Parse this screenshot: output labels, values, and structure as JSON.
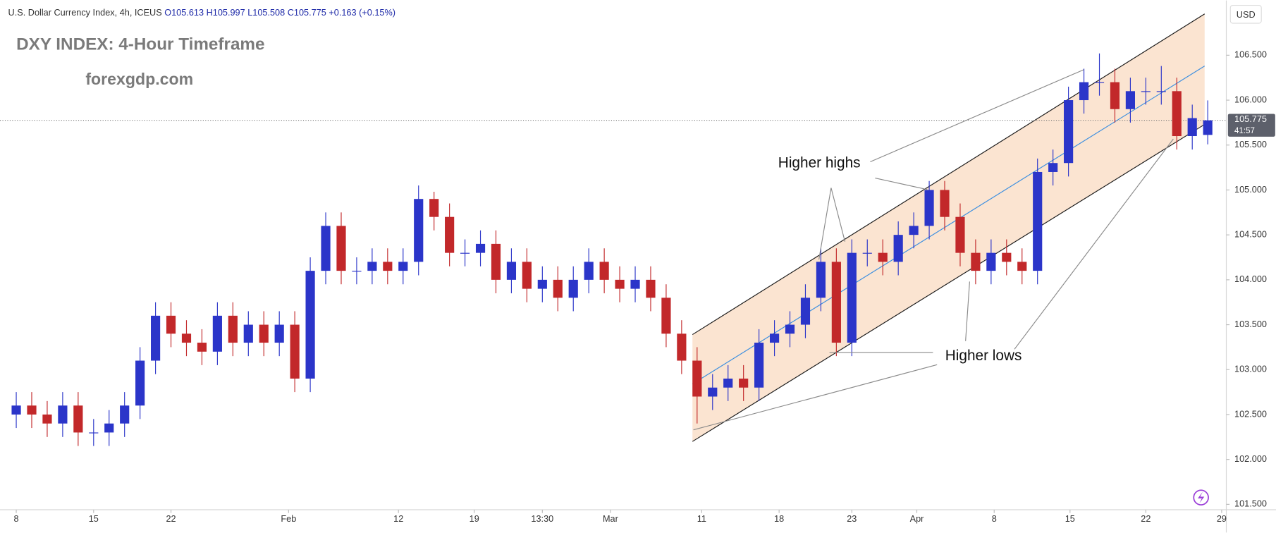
{
  "chart_data": {
    "type": "candlestick",
    "title": "DXY INDEX: 4-Hour Timeframe",
    "subtitle": "forexgdp.com",
    "header": {
      "symbol": "U.S. Dollar Currency Index, 4h, ICEUS",
      "ohlc": [
        "O105.613",
        "H105.997",
        "L105.508",
        "C105.775",
        "+0.163 (+0.15%)"
      ]
    },
    "currency": "USD",
    "annotations": [
      "Higher highs",
      "Higher lows"
    ],
    "last_price": 105.775,
    "countdown": "41:57",
    "up_color": "#2b35c9",
    "down_color": "#c2282a",
    "grid": false,
    "xlim": [
      -1.05,
      78.2
    ],
    "ylim": [
      101.44,
      107.11
    ],
    "xticks": [
      {
        "value": 0,
        "label": "8"
      },
      {
        "value": 5,
        "label": "15"
      },
      {
        "value": 10,
        "label": "22"
      },
      {
        "value": 17.6,
        "label": "Feb"
      },
      {
        "value": 24.7,
        "label": "12"
      },
      {
        "value": 29.6,
        "label": "19"
      },
      {
        "value": 34,
        "label": "13:30"
      },
      {
        "value": 38.4,
        "label": "Mar"
      },
      {
        "value": 44.3,
        "label": "11"
      },
      {
        "value": 49.3,
        "label": "18"
      },
      {
        "value": 54,
        "label": "23"
      },
      {
        "value": 58.2,
        "label": "Apr"
      },
      {
        "value": 63.2,
        "label": "8"
      },
      {
        "value": 68.1,
        "label": "15"
      },
      {
        "value": 73,
        "label": "22"
      },
      {
        "value": 77.9,
        "label": "29"
      }
    ],
    "yticks": [
      {
        "value": 101.5,
        "label": "101.500"
      },
      {
        "value": 102,
        "label": "102.000"
      },
      {
        "value": 102.5,
        "label": "102.500"
      },
      {
        "value": 103,
        "label": "103.000"
      },
      {
        "value": 103.5,
        "label": "103.500"
      },
      {
        "value": 104,
        "label": "104.000"
      },
      {
        "value": 104.5,
        "label": "104.500"
      },
      {
        "value": 105,
        "label": "105.000"
      },
      {
        "value": 105.5,
        "label": "105.500"
      },
      {
        "value": 106,
        "label": "106.000"
      },
      {
        "value": 106.5,
        "label": "106.500"
      }
    ],
    "channel": {
      "x": [
        43.7,
        76.8
      ],
      "upper": [
        103.39,
        106.96
      ],
      "mid": [
        102.84,
        106.38
      ],
      "lower": [
        102.2,
        105.73
      ],
      "fill": "#f9d9bd",
      "color": "#1a1a1a",
      "mid_color": "#3a8ee0"
    },
    "x": [
      0,
      1,
      2,
      3,
      4,
      5,
      6,
      7,
      8,
      9,
      10,
      11,
      12,
      13,
      14,
      15,
      16,
      17,
      18,
      19,
      20,
      21,
      22,
      23,
      24,
      25,
      26,
      27,
      28,
      29,
      30,
      31,
      32,
      33,
      34,
      35,
      36,
      37,
      38,
      39,
      40,
      41,
      42,
      43,
      44,
      45,
      46,
      47,
      48,
      49,
      50,
      51,
      52,
      53,
      54,
      55,
      56,
      57,
      58,
      59,
      60,
      61,
      62,
      63,
      64,
      65,
      66,
      67,
      68,
      69,
      70,
      71,
      72,
      73,
      74,
      75,
      76,
      77
    ],
    "open": [
      102.5,
      102.6,
      102.5,
      102.4,
      102.6,
      102.3,
      102.3,
      102.4,
      102.6,
      103.1,
      103.6,
      103.4,
      103.3,
      103.2,
      103.6,
      103.3,
      103.5,
      103.3,
      103.5,
      102.9,
      104.1,
      104.6,
      104.1,
      104.1,
      104.2,
      104.1,
      104.2,
      104.9,
      104.7,
      104.3,
      104.3,
      104.4,
      104.0,
      104.2,
      103.9,
      104.0,
      103.8,
      104.0,
      104.2,
      104.0,
      103.9,
      104.0,
      103.8,
      103.4,
      103.1,
      102.7,
      102.8,
      102.9,
      102.8,
      103.3,
      103.4,
      103.5,
      103.8,
      104.2,
      103.3,
      104.3,
      104.3,
      104.2,
      104.5,
      104.6,
      105.0,
      104.7,
      104.3,
      104.1,
      104.3,
      104.2,
      104.1,
      105.2,
      105.3,
      106.0,
      106.2,
      106.2,
      105.9,
      106.1,
      106.1,
      106.1,
      105.6,
      105.613
    ],
    "high": [
      102.75,
      102.75,
      102.65,
      102.75,
      102.75,
      102.45,
      102.55,
      102.75,
      103.25,
      103.75,
      103.75,
      103.55,
      103.45,
      103.75,
      103.75,
      103.65,
      103.65,
      103.65,
      103.65,
      104.25,
      104.75,
      104.75,
      104.25,
      104.35,
      104.35,
      104.35,
      105.05,
      104.98,
      104.85,
      104.45,
      104.55,
      104.55,
      104.35,
      104.35,
      104.15,
      104.15,
      104.15,
      104.35,
      104.35,
      104.15,
      104.15,
      104.15,
      103.95,
      103.55,
      103.25,
      102.95,
      103.05,
      103.05,
      103.45,
      103.55,
      103.65,
      103.95,
      104.35,
      104.35,
      104.45,
      104.45,
      104.45,
      104.65,
      104.75,
      105.1,
      105.1,
      104.85,
      104.45,
      104.45,
      104.45,
      104.35,
      105.35,
      105.45,
      106.15,
      106.35,
      106.52,
      106.35,
      106.25,
      106.25,
      106.38,
      106.25,
      105.95,
      105.997
    ],
    "low": [
      102.35,
      102.35,
      102.25,
      102.25,
      102.15,
      102.15,
      102.15,
      102.25,
      102.45,
      102.95,
      103.25,
      103.15,
      103.05,
      103.05,
      103.15,
      103.15,
      103.15,
      103.15,
      102.75,
      102.75,
      103.95,
      103.95,
      103.95,
      103.95,
      103.95,
      103.95,
      104.05,
      104.55,
      104.15,
      104.15,
      104.15,
      103.85,
      103.85,
      103.75,
      103.75,
      103.65,
      103.65,
      103.85,
      103.85,
      103.75,
      103.75,
      103.65,
      103.25,
      102.95,
      102.4,
      102.55,
      102.65,
      102.65,
      102.65,
      103.15,
      103.25,
      103.35,
      103.65,
      103.15,
      103.15,
      104.15,
      104.05,
      104.05,
      104.35,
      104.45,
      104.55,
      104.15,
      103.95,
      103.95,
      104.05,
      103.95,
      103.95,
      105.05,
      105.15,
      105.85,
      106.05,
      105.75,
      105.75,
      105.95,
      105.95,
      105.45,
      105.45,
      105.508
    ],
    "close": [
      102.6,
      102.5,
      102.4,
      102.6,
      102.3,
      102.3,
      102.4,
      102.6,
      103.1,
      103.6,
      103.4,
      103.3,
      103.2,
      103.6,
      103.3,
      103.5,
      103.3,
      103.5,
      102.9,
      104.1,
      104.6,
      104.1,
      104.1,
      104.2,
      104.1,
      104.2,
      104.9,
      104.7,
      104.3,
      104.3,
      104.4,
      104.0,
      104.2,
      103.9,
      104.0,
      103.8,
      104.0,
      104.2,
      104.0,
      103.9,
      104.0,
      103.8,
      103.4,
      103.1,
      102.7,
      102.8,
      102.9,
      102.8,
      103.3,
      103.4,
      103.5,
      103.8,
      104.2,
      103.3,
      104.3,
      104.3,
      104.2,
      104.5,
      104.6,
      105.0,
      104.7,
      104.3,
      104.1,
      104.3,
      104.2,
      104.1,
      105.2,
      105.3,
      106.0,
      106.2,
      106.2,
      105.9,
      106.1,
      106.1,
      106.1,
      105.6,
      105.8,
      105.775
    ]
  }
}
